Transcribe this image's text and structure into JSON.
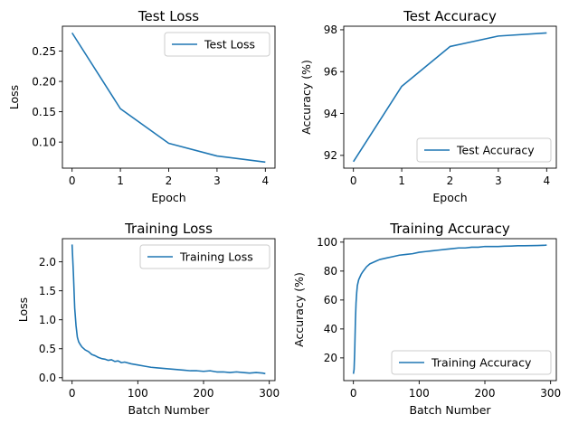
{
  "colors": {
    "series": "#1f77b4",
    "axes": "#000000",
    "legend_border": "#cccccc",
    "background": "#ffffff"
  },
  "chart_data": [
    {
      "type": "line",
      "title": "Test Loss",
      "xlabel": "Epoch",
      "ylabel": "Loss",
      "xlim": [
        -0.2,
        4.2
      ],
      "ylim": [
        0.057,
        0.291
      ],
      "xticks": [
        0,
        1,
        2,
        3,
        4
      ],
      "yticks": [
        0.1,
        0.15,
        0.2,
        0.25
      ],
      "ytick_labels": [
        "0.10",
        "0.15",
        "0.20",
        "0.25"
      ],
      "grid": false,
      "legend_position": "top-right",
      "series": [
        {
          "name": "Test Loss",
          "x": [
            0,
            1,
            2,
            3,
            4
          ],
          "y": [
            0.28,
            0.155,
            0.098,
            0.077,
            0.067
          ]
        }
      ]
    },
    {
      "type": "line",
      "title": "Test Accuracy",
      "xlabel": "Epoch",
      "ylabel": "Accuracy (%)",
      "xlim": [
        -0.2,
        4.2
      ],
      "ylim": [
        91.39,
        98.17
      ],
      "xticks": [
        0,
        1,
        2,
        3,
        4
      ],
      "yticks": [
        92,
        94,
        96,
        98
      ],
      "ytick_labels": [
        "92",
        "94",
        "96",
        "98"
      ],
      "grid": false,
      "legend_position": "bottom-right",
      "series": [
        {
          "name": "Test Accuracy",
          "x": [
            0,
            1,
            2,
            3,
            4
          ],
          "y": [
            91.7,
            95.3,
            97.2,
            97.7,
            97.85
          ]
        }
      ]
    },
    {
      "type": "line",
      "title": "Training Loss",
      "xlabel": "Batch Number",
      "ylabel": "Loss",
      "xlim": [
        -14.7,
        308.7
      ],
      "ylim": [
        -0.05,
        2.4
      ],
      "xticks": [
        0,
        100,
        200,
        300
      ],
      "yticks": [
        0.0,
        0.5,
        1.0,
        1.5,
        2.0
      ],
      "ytick_labels": [
        "0.0",
        "0.5",
        "1.0",
        "1.5",
        "2.0"
      ],
      "grid": false,
      "legend_position": "top-right",
      "series": [
        {
          "name": "Training Loss",
          "x": [
            0,
            2,
            4,
            6,
            8,
            10,
            12,
            15,
            20,
            25,
            30,
            35,
            40,
            45,
            50,
            55,
            60,
            65,
            70,
            75,
            80,
            90,
            100,
            110,
            120,
            130,
            140,
            150,
            160,
            170,
            180,
            190,
            200,
            210,
            220,
            230,
            240,
            250,
            260,
            270,
            280,
            290,
            294
          ],
          "y": [
            2.3,
            1.8,
            1.2,
            0.9,
            0.7,
            0.62,
            0.58,
            0.53,
            0.48,
            0.45,
            0.4,
            0.38,
            0.35,
            0.33,
            0.32,
            0.3,
            0.31,
            0.28,
            0.29,
            0.26,
            0.27,
            0.24,
            0.22,
            0.2,
            0.18,
            0.17,
            0.16,
            0.15,
            0.14,
            0.13,
            0.12,
            0.12,
            0.11,
            0.12,
            0.1,
            0.1,
            0.09,
            0.1,
            0.09,
            0.08,
            0.09,
            0.08,
            0.07
          ]
        }
      ]
    },
    {
      "type": "line",
      "title": "Training Accuracy",
      "xlabel": "Batch Number",
      "ylabel": "Accuracy (%)",
      "xlim": [
        -14.7,
        308.7
      ],
      "ylim": [
        4.3,
        102.4
      ],
      "xticks": [
        0,
        100,
        200,
        300
      ],
      "yticks": [
        20,
        40,
        60,
        80,
        100
      ],
      "ytick_labels": [
        "20",
        "40",
        "60",
        "80",
        "100"
      ],
      "grid": false,
      "legend_position": "bottom-right",
      "series": [
        {
          "name": "Training Accuracy",
          "x": [
            0,
            1,
            2,
            3,
            4,
            5,
            6,
            8,
            10,
            12,
            15,
            20,
            25,
            30,
            35,
            40,
            50,
            60,
            70,
            80,
            90,
            100,
            110,
            120,
            130,
            140,
            150,
            160,
            170,
            180,
            190,
            200,
            210,
            220,
            230,
            240,
            250,
            260,
            270,
            280,
            290,
            294
          ],
          "y": [
            9,
            12,
            25,
            45,
            58,
            65,
            70,
            74,
            76,
            78,
            80,
            83,
            85,
            86,
            87,
            88,
            89,
            90,
            91,
            91.5,
            92,
            93,
            93.5,
            94,
            94.5,
            95,
            95.5,
            96,
            96,
            96.5,
            96.5,
            97,
            97,
            97,
            97.2,
            97.3,
            97.5,
            97.5,
            97.6,
            97.7,
            97.8,
            98
          ]
        }
      ]
    }
  ]
}
